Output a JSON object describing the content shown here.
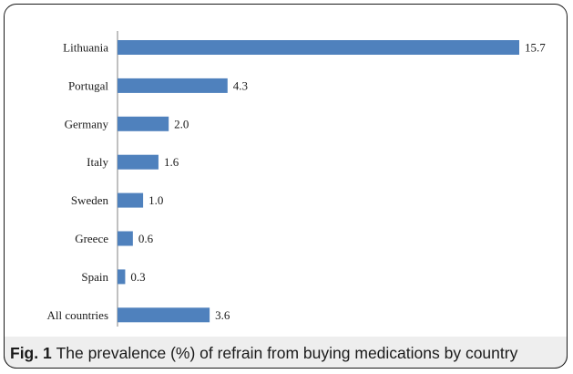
{
  "chart_data": {
    "type": "bar",
    "orientation": "horizontal",
    "categories": [
      "Lithuania",
      "Portugal",
      "Germany",
      "Italy",
      "Sweden",
      "Greece",
      "Spain",
      "All countries"
    ],
    "values": [
      15.7,
      4.3,
      2.0,
      1.6,
      1.0,
      0.6,
      0.3,
      3.6
    ],
    "value_labels": [
      "15.7",
      "4.3",
      "2.0",
      "1.6",
      "1.0",
      "0.6",
      "0.3",
      "3.6"
    ],
    "title": "",
    "xlabel": "",
    "ylabel": "",
    "xlim": [
      0,
      16
    ],
    "grid": false,
    "legend": "none",
    "bar_color": "#4f81bd"
  },
  "caption": {
    "fig_label": "Fig. 1",
    "text": "The prevalence (%) of refrain from buying medications by country"
  }
}
